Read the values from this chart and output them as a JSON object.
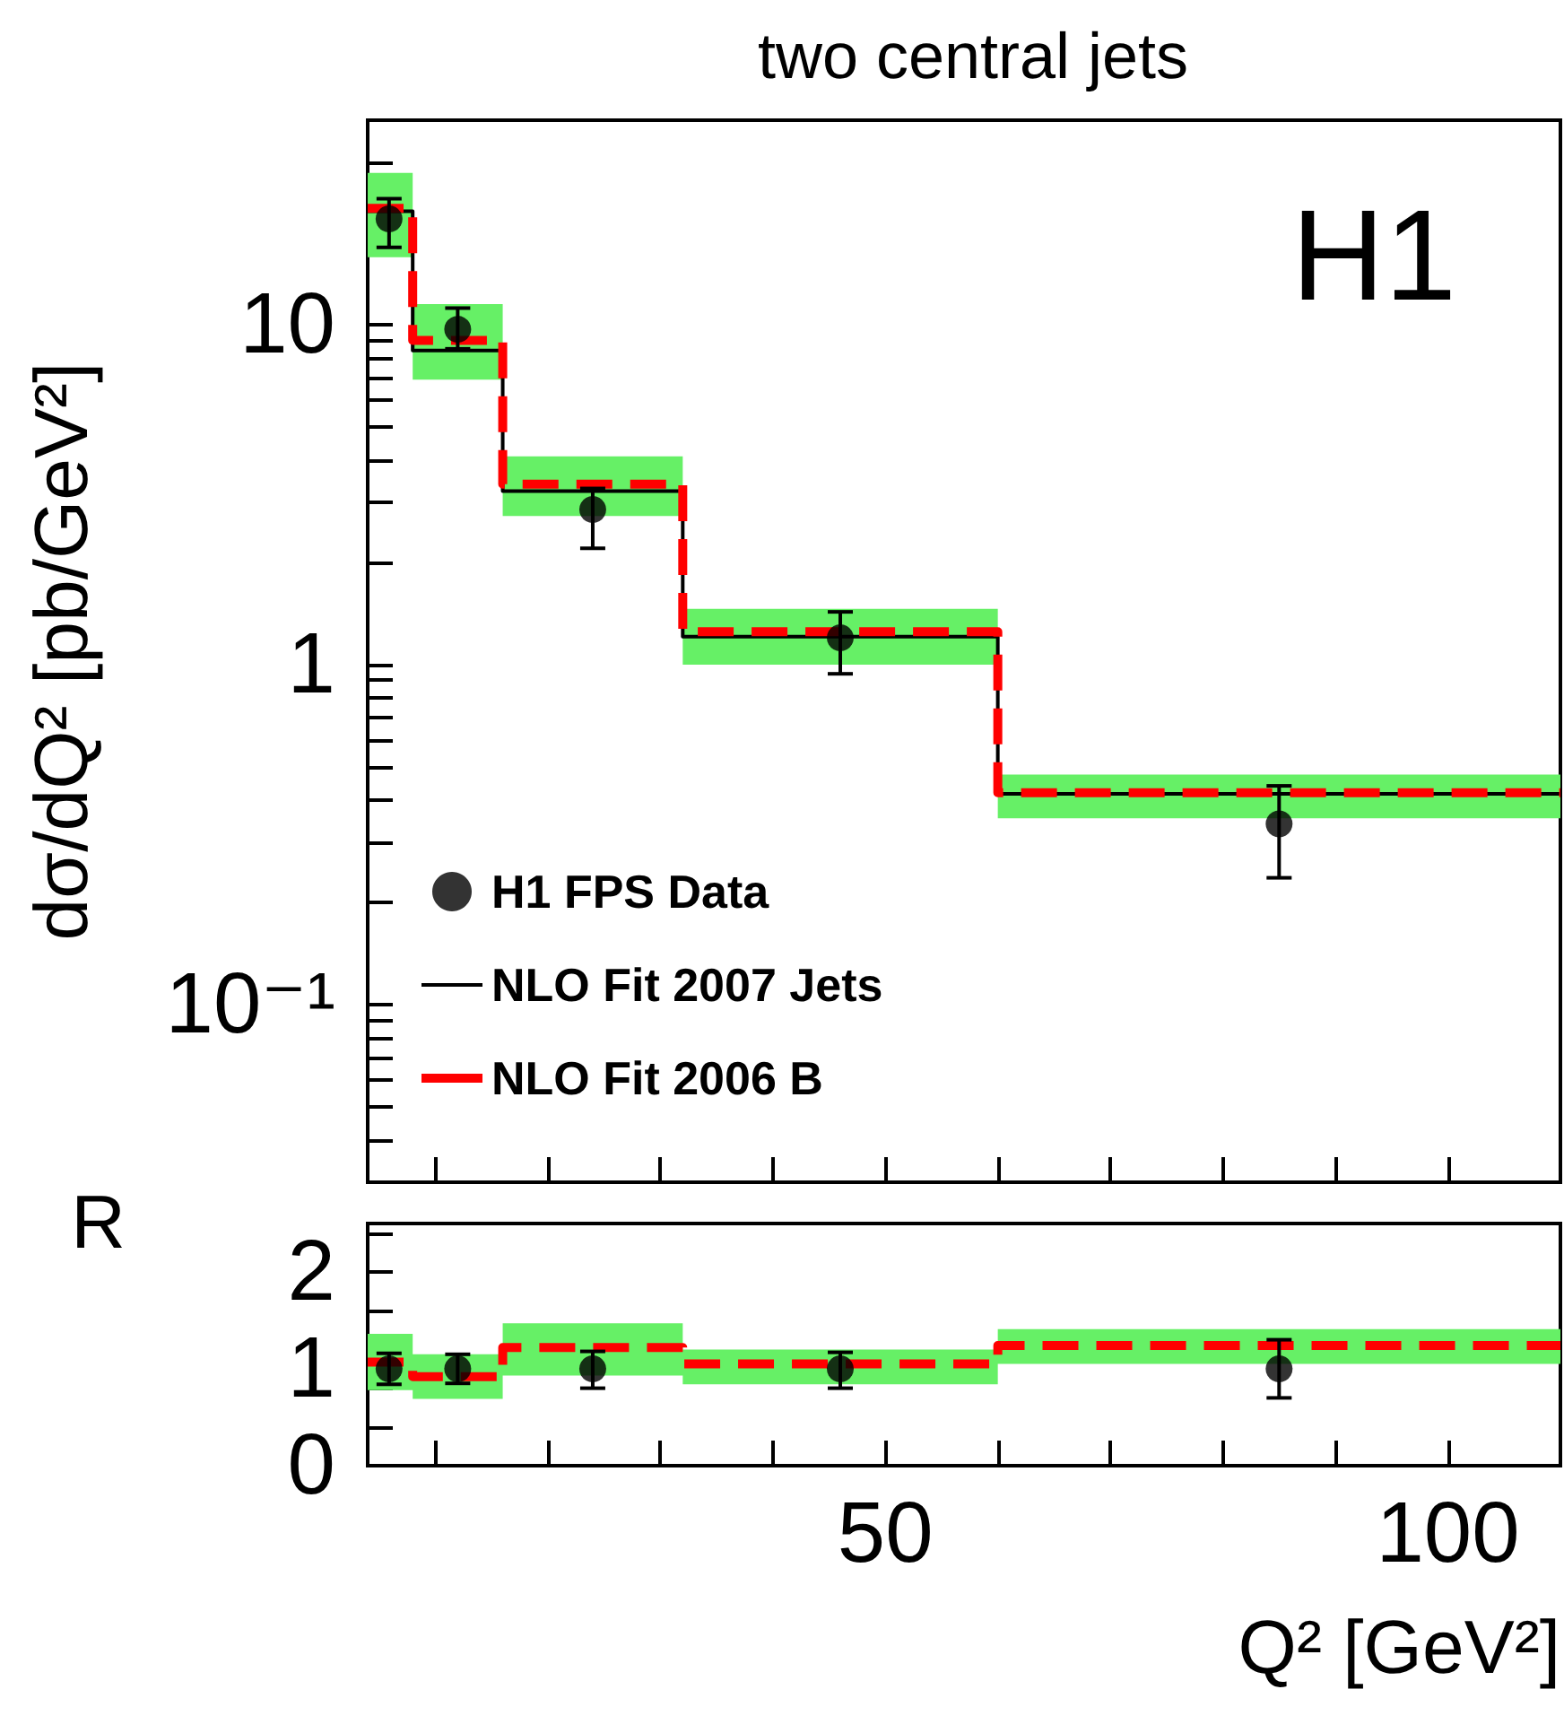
{
  "chart_data": [
    {
      "type": "step",
      "title": "two central jets",
      "ylabel": "dσ/dQ² [pb/GeV²]",
      "annotations": [
        "H1"
      ],
      "xlim": [
        4,
        110
      ],
      "xticks": [
        {
          "value": 10,
          "label": null
        },
        {
          "value": 20,
          "label": null
        },
        {
          "value": 30,
          "label": null
        },
        {
          "value": 40,
          "label": null
        },
        {
          "value": 50,
          "label": null
        },
        {
          "value": 60,
          "label": null
        },
        {
          "value": 70,
          "label": null
        },
        {
          "value": 80,
          "label": null
        },
        {
          "value": 90,
          "label": null
        },
        {
          "value": 100,
          "label": null
        }
      ],
      "ylim": [
        0.03,
        40
      ],
      "yticks": [
        {
          "value": 0.04,
          "label": null
        },
        {
          "value": 0.05,
          "label": null
        },
        {
          "value": 0.06,
          "label": null
        },
        {
          "value": 0.07,
          "label": null
        },
        {
          "value": 0.08,
          "label": null
        },
        {
          "value": 0.09,
          "label": null
        },
        {
          "value": 0.1,
          "label": "10⁻¹"
        },
        {
          "value": 0.2,
          "label": null
        },
        {
          "value": 0.3,
          "label": null
        },
        {
          "value": 0.4,
          "label": null
        },
        {
          "value": 0.5,
          "label": null
        },
        {
          "value": 0.6,
          "label": null
        },
        {
          "value": 0.7,
          "label": null
        },
        {
          "value": 0.8,
          "label": null
        },
        {
          "value": 0.9,
          "label": null
        },
        1,
        {
          "value": 2,
          "label": null
        },
        {
          "value": 3,
          "label": null
        },
        {
          "value": 4,
          "label": null
        },
        {
          "value": 5,
          "label": null
        },
        {
          "value": 6,
          "label": null
        },
        {
          "value": 7,
          "label": null
        },
        {
          "value": 8,
          "label": null
        },
        {
          "value": 9,
          "label": null
        },
        10,
        {
          "value": 20,
          "label": null
        },
        {
          "value": 30,
          "label": null
        },
        {
          "value": 40,
          "label": null
        }
      ],
      "log": "y",
      "legend": "bottom left",
      "tick_labels": "y",
      "series": [
        {
          "type": "scatter",
          "name": "H1 FPS Data",
          "color": "#000000",
          "marker": "circle",
          "x": [
            5.9,
            12,
            24,
            46,
            85
          ],
          "values": [
            20.5,
            9.7,
            2.86,
            1.2,
            0.34
          ],
          "errors": [
            [
              16.9,
              23.5
            ],
            [
              8.5,
              11.2
            ],
            [
              2.2,
              3.3
            ],
            [
              0.94,
              1.43
            ],
            [
              0.236,
              0.44
            ]
          ]
        },
        {
          "name": "NLO Fit 2007 Jets",
          "color": "#000000",
          "x": [
            4,
            8,
            16,
            32,
            60,
            110
          ],
          "values": [
            21.6,
            8.4,
            3.24,
            1.21,
            0.417,
            0.417
          ],
          "lower": [
            15.8,
            6.9,
            2.74,
            1.0,
            0.353,
            0.353
          ],
          "upper": [
            28,
            11.5,
            4.1,
            1.46,
            0.475,
            0.475
          ]
        },
        {
          "name": "NLO Fit 2006 B",
          "color": "#ff0000",
          "x": [
            4,
            8,
            16,
            32,
            60,
            110
          ],
          "values": [
            22,
            9.0,
            3.4,
            1.25,
            0.42,
            0.42
          ],
          "line_style": "dashed"
        }
      ]
    },
    {
      "type": "step",
      "ylabel": "R",
      "xlabel": "Q² [GeV²]",
      "xlim": [
        4,
        110
      ],
      "xticks": [
        {
          "value": 10,
          "label": null
        },
        {
          "value": 20,
          "label": null
        },
        {
          "value": 30,
          "label": null
        },
        {
          "value": 40,
          "label": null
        },
        50,
        {
          "value": 60,
          "label": null
        },
        {
          "value": 70,
          "label": null
        },
        {
          "value": 80,
          "label": null
        },
        {
          "value": 90,
          "label": null
        },
        100
      ],
      "ylim": [
        0,
        2.5
      ],
      "yticks": [
        0,
        {
          "value": 0.4,
          "label": null
        },
        {
          "value": 0.8,
          "label": null
        },
        1,
        {
          "value": 1.2,
          "label": null
        },
        {
          "value": 1.6,
          "label": null
        },
        2,
        {
          "value": 2.4,
          "label": null
        }
      ],
      "series": [
        {
          "type": "scatter",
          "color": "#000000",
          "marker": "circle",
          "x": [
            5.9,
            12,
            24,
            46,
            85
          ],
          "values": [
            1.0,
            1.0,
            1.0,
            1.0,
            1.0
          ],
          "errors": [
            [
              0.84,
              1.16
            ],
            [
              0.85,
              1.15
            ],
            [
              0.8,
              1.18
            ],
            [
              0.8,
              1.17
            ],
            [
              0.7,
              1.3
            ]
          ]
        },
        {
          "color": "#000000",
          "x": [
            4,
            8,
            16,
            32,
            60,
            110
          ],
          "values": [
            null,
            null,
            null,
            null,
            null,
            null
          ],
          "lower": [
            0.78,
            0.69,
            0.93,
            0.84,
            1.05,
            1.05
          ],
          "upper": [
            1.36,
            1.15,
            1.47,
            1.2,
            1.41,
            1.41
          ]
        },
        {
          "color": "#ff0000",
          "x": [
            4,
            8,
            16,
            32,
            60,
            110
          ],
          "values": [
            1.07,
            0.92,
            1.22,
            1.05,
            1.24,
            1.24
          ],
          "line_style": "dashed"
        }
      ]
    }
  ]
}
